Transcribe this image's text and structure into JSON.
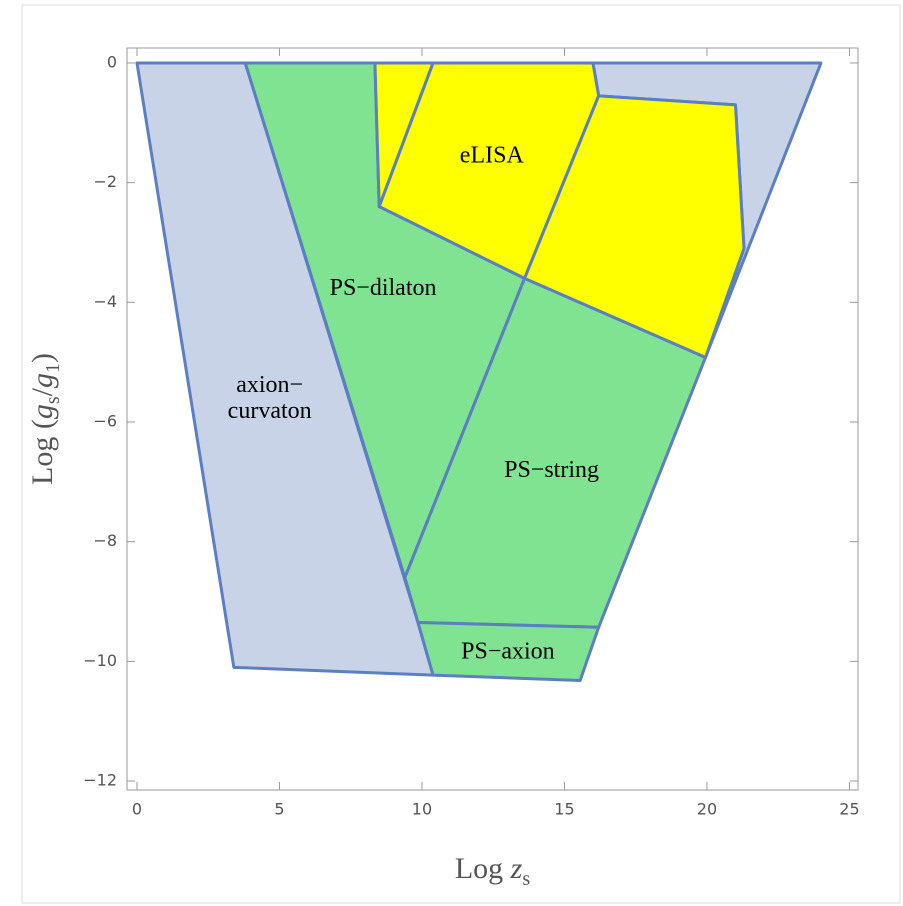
{
  "chart_data": {
    "type": "polygon",
    "xlabel": [
      "Log ",
      "z",
      "s"
    ],
    "ylabel": [
      "Log (",
      "g",
      "s",
      "/",
      "g",
      "1",
      ")"
    ],
    "xlim": [
      -0.35,
      25.3
    ],
    "ylim": [
      -12.15,
      0.25
    ],
    "xticks": [
      0,
      5,
      10,
      15,
      20,
      25
    ],
    "yticks": [
      0,
      {
        "value": -2,
        "label": "−2"
      },
      {
        "value": -4,
        "label": "−4"
      },
      {
        "value": -6,
        "label": "−6"
      },
      {
        "value": -8,
        "label": "−8"
      },
      {
        "value": -10,
        "label": "−10"
      },
      {
        "value": -12,
        "label": "−12"
      }
    ],
    "edge_color": "#5b7fc0",
    "series": [
      {
        "name": [
          "axion−",
          "curvaton"
        ],
        "color": "#c8d3e8",
        "x": [
          0,
          3.8,
          9.86,
          10.39,
          3.4
        ],
        "y": [
          0,
          0,
          -9.35,
          -10.23,
          -10.1
        ]
      },
      {
        "name": null,
        "color": "#c8d3e8",
        "x": [
          16,
          24,
          19.95,
          21.3,
          21,
          16.2
        ],
        "y": [
          0,
          0,
          -4.92,
          -3.1,
          -0.7,
          -0.55
        ]
      },
      {
        "name": "PS−dilaton",
        "color": "#80e392",
        "x": [
          3.8,
          8.35,
          8.5,
          13.6,
          9.4
        ],
        "y": [
          0,
          0,
          -2.4,
          -3.6,
          -8.6
        ]
      },
      {
        "name": "PS−string",
        "color": "#80e392",
        "x": [
          9.4,
          13.6,
          19.95,
          16.2,
          9.86
        ],
        "y": [
          -8.6,
          -3.6,
          -4.92,
          -9.43,
          -9.35
        ]
      },
      {
        "name": "PS−axion",
        "color": "#80e392",
        "x": [
          9.86,
          16.2,
          15.55,
          10.39
        ],
        "y": [
          -9.35,
          -9.43,
          -10.32,
          -10.23
        ]
      },
      {
        "name": null,
        "color": "#ffff00",
        "x": [
          8.35,
          10.39,
          8.5
        ],
        "y": [
          0,
          0,
          -2.4
        ]
      },
      {
        "name": "eLISA",
        "color": "#ffff00",
        "x": [
          10.39,
          16,
          16.2,
          13.6,
          8.5
        ],
        "y": [
          0,
          0,
          -0.55,
          -3.6,
          -2.4
        ]
      },
      {
        "name": null,
        "color": "#ffff00",
        "x": [
          16.2,
          21,
          21.3,
          19.95,
          13.6
        ],
        "y": [
          -0.55,
          -0.7,
          -3.1,
          -4.92,
          -3.6
        ]
      }
    ]
  }
}
